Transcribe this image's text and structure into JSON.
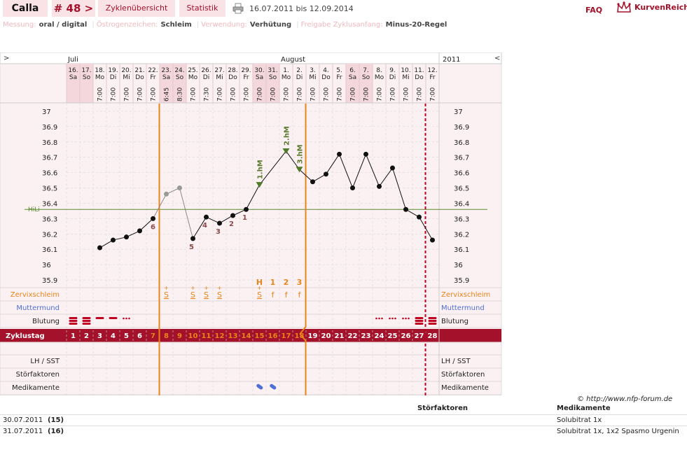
{
  "header": {
    "name_tab": "Calla",
    "cycle_tab": "# 48 >",
    "overview_tab": "Zyklenübersicht",
    "stats_tab": "Statistik",
    "print_icon": "printer-icon",
    "date_range": "16.07.2011 bis 12.09.2014",
    "faq": "FAQ",
    "logo_text": "KurvenReich",
    "accent": "#a3112a"
  },
  "info": {
    "measure_label": "Messung:",
    "measure_value": "oral / digital",
    "estrogen_label": "Östrogenzeichen:",
    "estrogen_value": "Schleim",
    "usage_label": "Verwendung:",
    "usage_value": "Verhütung",
    "release_label": "Freigabe Zyklusanfang:",
    "release_value": "Minus-20-Regel"
  },
  "nav": {
    "prev": ">",
    "next": "<",
    "year": "2011"
  },
  "chart_data": {
    "type": "line",
    "months": [
      {
        "label": "Juli",
        "day_index": 0
      },
      {
        "label": "August",
        "day_index": 16
      }
    ],
    "days": [
      {
        "date": "16.",
        "wd": "Sa",
        "time": "",
        "weekend": true,
        "temp": null,
        "gray": false
      },
      {
        "date": "17.",
        "wd": "So",
        "time": "",
        "weekend": true,
        "temp": null,
        "gray": false
      },
      {
        "date": "18.",
        "wd": "Mo",
        "time": "7:00",
        "weekend": false,
        "temp": 36.11,
        "gray": false
      },
      {
        "date": "19.",
        "wd": "Di",
        "time": "7:00",
        "weekend": false,
        "temp": 36.16,
        "gray": false
      },
      {
        "date": "20.",
        "wd": "Mi",
        "time": "7:00",
        "weekend": false,
        "temp": 36.18,
        "gray": false
      },
      {
        "date": "21.",
        "wd": "Do",
        "time": "7:00",
        "weekend": false,
        "temp": 36.22,
        "gray": false
      },
      {
        "date": "22.",
        "wd": "Fr",
        "time": "7:00",
        "weekend": false,
        "temp": 36.3,
        "gray": false
      },
      {
        "date": "23.",
        "wd": "Sa",
        "time": "6:45",
        "weekend": true,
        "temp": 36.46,
        "gray": true
      },
      {
        "date": "24.",
        "wd": "So",
        "time": "8:30",
        "weekend": true,
        "temp": 36.5,
        "gray": true
      },
      {
        "date": "25.",
        "wd": "Mo",
        "time": "7:00",
        "weekend": false,
        "temp": 36.17,
        "gray": false
      },
      {
        "date": "26.",
        "wd": "Di",
        "time": "7:30",
        "weekend": false,
        "temp": 36.31,
        "gray": false
      },
      {
        "date": "27.",
        "wd": "Mi",
        "time": "7:00",
        "weekend": false,
        "temp": 36.27,
        "gray": false
      },
      {
        "date": "28.",
        "wd": "Do",
        "time": "7:00",
        "weekend": false,
        "temp": 36.32,
        "gray": false
      },
      {
        "date": "29.",
        "wd": "Fr",
        "time": "7:00",
        "weekend": false,
        "temp": 36.36,
        "gray": false
      },
      {
        "date": "30.",
        "wd": "Sa",
        "time": "7:00",
        "weekend": true,
        "temp": 36.52,
        "gray": false
      },
      {
        "date": "31.",
        "wd": "So",
        "time": "7:00",
        "weekend": true,
        "temp": null,
        "gray": false
      },
      {
        "date": "1.",
        "wd": "Mo",
        "time": "7:00",
        "weekend": false,
        "temp": 36.74,
        "gray": false
      },
      {
        "date": "2.",
        "wd": "Di",
        "time": "7:00",
        "weekend": false,
        "temp": 36.62,
        "gray": false
      },
      {
        "date": "3.",
        "wd": "Mi",
        "time": "7:00",
        "weekend": false,
        "temp": 36.54,
        "gray": false
      },
      {
        "date": "4.",
        "wd": "Do",
        "time": "7:00",
        "weekend": false,
        "temp": 36.59,
        "gray": false
      },
      {
        "date": "5.",
        "wd": "Fr",
        "time": "7:00",
        "weekend": false,
        "temp": 36.72,
        "gray": false
      },
      {
        "date": "6.",
        "wd": "Sa",
        "time": "7:00",
        "weekend": true,
        "temp": 36.5,
        "gray": false
      },
      {
        "date": "7.",
        "wd": "So",
        "time": "7:00",
        "weekend": true,
        "temp": 36.72,
        "gray": false
      },
      {
        "date": "8.",
        "wd": "Mo",
        "time": "7:00",
        "weekend": false,
        "temp": 36.51,
        "gray": false
      },
      {
        "date": "9.",
        "wd": "Di",
        "time": "7:00",
        "weekend": false,
        "temp": 36.63,
        "gray": false
      },
      {
        "date": "10.",
        "wd": "Mi",
        "time": "7:00",
        "weekend": false,
        "temp": 36.36,
        "gray": false
      },
      {
        "date": "11.",
        "wd": "Do",
        "time": "7:00",
        "weekend": false,
        "temp": 36.31,
        "gray": false
      },
      {
        "date": "12.",
        "wd": "Fr",
        "time": "7:00",
        "weekend": false,
        "temp": 36.16,
        "gray": false
      }
    ],
    "y_ticks": [
      "37",
      "36.9",
      "36.8",
      "36.7",
      "36.6",
      "36.5",
      "36.4",
      "36.3",
      "36.2",
      "36.1",
      "36",
      "35.9"
    ],
    "ylim": [
      35.85,
      37.05
    ],
    "hilo": {
      "label": "HiLi",
      "value": 36.36
    },
    "ovulation_lines": [
      6,
      17
    ],
    "cycle_end_day": 26,
    "point_labels": [
      {
        "day": 6,
        "text": "6"
      },
      {
        "day": 9,
        "text": "5"
      },
      {
        "day": 10,
        "text": "4"
      },
      {
        "day": 11,
        "text": "3"
      },
      {
        "day": 12,
        "text": "2"
      },
      {
        "day": 13,
        "text": "1"
      }
    ],
    "high_measurements": [
      {
        "day": 14,
        "text": "1.hM",
        "temp": 36.52
      },
      {
        "day": 16,
        "text": "2.hM",
        "temp": 36.74
      },
      {
        "day": 17,
        "text": "3.hM",
        "temp": 36.62
      }
    ],
    "mucus_counts": [
      {
        "day": 14,
        "text": "H"
      },
      {
        "day": 15,
        "text": "1"
      },
      {
        "day": 16,
        "text": "2"
      },
      {
        "day": 17,
        "text": "3"
      }
    ],
    "mucus": [
      {
        "day": 7,
        "text": "S"
      },
      {
        "day": 9,
        "text": "S"
      },
      {
        "day": 10,
        "text": "S"
      },
      {
        "day": 11,
        "text": "S"
      },
      {
        "day": 14,
        "text": "S"
      },
      {
        "day": 15,
        "text": "f"
      },
      {
        "day": 16,
        "text": "f"
      },
      {
        "day": 17,
        "text": "f"
      }
    ],
    "mucus_plus_days": [
      7,
      9,
      10,
      11,
      14
    ],
    "bleeding": [
      {
        "day": 0,
        "level": "heavy"
      },
      {
        "day": 1,
        "level": "heavy"
      },
      {
        "day": 2,
        "level": "light"
      },
      {
        "day": 3,
        "level": "light"
      },
      {
        "day": 4,
        "level": "spotting"
      },
      {
        "day": 23,
        "level": "spotting"
      },
      {
        "day": 24,
        "level": "spotting"
      },
      {
        "day": 25,
        "level": "spotting"
      },
      {
        "day": 26,
        "level": "heavy"
      },
      {
        "day": 27,
        "level": "heavy"
      }
    ],
    "cycle_days": [
      "1",
      "2",
      "3",
      "4",
      "5",
      "6",
      "7",
      "8",
      "9",
      "10",
      "11",
      "12",
      "13",
      "14",
      "15",
      "16",
      "17",
      "18",
      "19",
      "20",
      "21",
      "22",
      "23",
      "24",
      "25",
      "26",
      "27",
      "28"
    ],
    "fertile_cycle_days": [
      6,
      17
    ],
    "medication_days": [
      14,
      15
    ],
    "row_labels": {
      "cervical_mucus": "Zervixschleim",
      "cervix": "Muttermund",
      "bleeding": "Blutung",
      "cycle_day": "Zyklustag",
      "lh": "LH / SST",
      "disturbance": "Störfaktoren",
      "medication": "Medikamente"
    },
    "colors": {
      "orange": "#e8841b",
      "green": "#5a7a30",
      "dotred": "#c00020",
      "red": "#a3112a",
      "point_label": "#8a4a4a",
      "blue": "#4f6fd8"
    }
  },
  "notes": {
    "copyright": "© http://www.nfp-forum.de",
    "col_disturbance": "Störfaktoren",
    "col_medication": "Medikamente",
    "rows": [
      {
        "date": "30.07.2011",
        "cycle_day": "(15)",
        "disturbance": "",
        "medication": "Solubitrat 1x"
      },
      {
        "date": "31.07.2011",
        "cycle_day": "(16)",
        "disturbance": "",
        "medication": "Solubitrat 1x, 1x2 Spasmo Urgenin"
      }
    ]
  }
}
